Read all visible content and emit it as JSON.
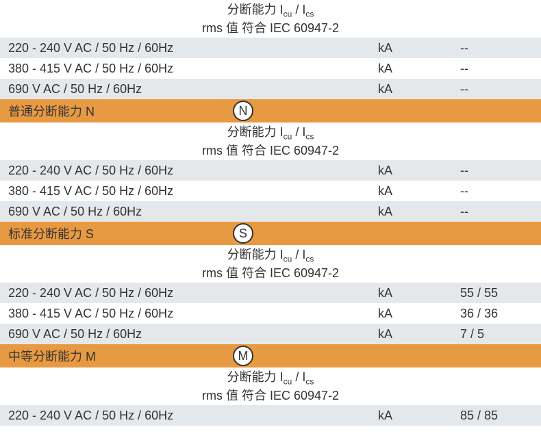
{
  "colors": {
    "row_white": "#ffffff",
    "row_gray": "#e4e8eb",
    "row_orange": "#e89a42",
    "text": "#333333",
    "circle_border": "#333333"
  },
  "header_partial": {
    "line1_prefix": "分断能力 I",
    "line1_sub1": "cu",
    "line1_mid": " / I",
    "line1_sub2": "cs",
    "line2": "rms 值 符合 IEC 60947-2"
  },
  "block1": {
    "rows": [
      {
        "label": "220 - 240 V AC / 50 Hz / 60Hz",
        "unit": "kA",
        "value": "--"
      },
      {
        "label": "380 - 415 V AC / 50 Hz / 60Hz",
        "unit": "kA",
        "value": "--"
      },
      {
        "label": "690 V AC / 50 Hz / 60Hz",
        "unit": "kA",
        "value": "--"
      }
    ]
  },
  "section_n": {
    "title": "普通分断能力 N",
    "icon": "N",
    "header": {
      "line1_prefix": "分断能力 I",
      "line1_sub1": "cu",
      "line1_mid": " / I",
      "line1_sub2": "cs",
      "line2": "rms 值 符合 IEC 60947-2"
    },
    "rows": [
      {
        "label": "220 - 240 V AC / 50 Hz / 60Hz",
        "unit": "kA",
        "value": "--"
      },
      {
        "label": "380 - 415 V AC / 50 Hz / 60Hz",
        "unit": "kA",
        "value": "--"
      },
      {
        "label": "690 V AC / 50 Hz / 60Hz",
        "unit": "kA",
        "value": "--"
      }
    ]
  },
  "section_s": {
    "title": "标准分断能力 S",
    "icon": "S",
    "header": {
      "line1_prefix": "分断能力 I",
      "line1_sub1": "cu",
      "line1_mid": " / I",
      "line1_sub2": "cs",
      "line2": "rms 值 符合 IEC 60947-2"
    },
    "rows": [
      {
        "label": "220 - 240 V AC / 50 Hz / 60Hz",
        "unit": "kA",
        "value": "55 / 55"
      },
      {
        "label": "380 - 415 V AC / 50 Hz / 60Hz",
        "unit": "kA",
        "value": "36 / 36"
      },
      {
        "label": "690 V AC / 50 Hz / 60Hz",
        "unit": "kA",
        "value": "7 / 5"
      }
    ]
  },
  "section_m": {
    "title": "中等分断能力 M",
    "icon": "M",
    "header": {
      "line1_prefix": "分断能力 I",
      "line1_sub1": "cu",
      "line1_mid": " / I",
      "line1_sub2": "cs",
      "line2": "rms 值 符合 IEC 60947-2"
    },
    "rows": [
      {
        "label": "220 - 240 V AC / 50 Hz / 60Hz",
        "unit": "kA",
        "value": "85 / 85"
      }
    ]
  }
}
